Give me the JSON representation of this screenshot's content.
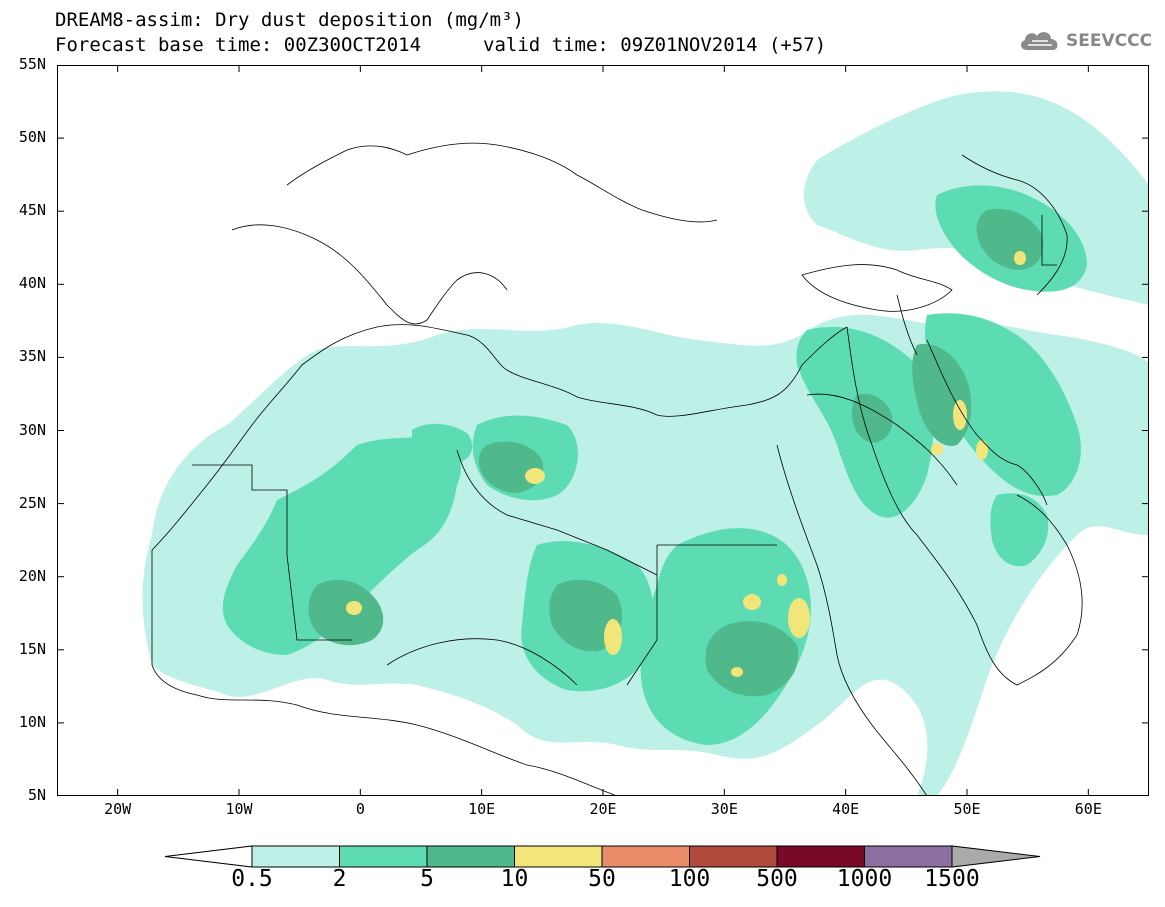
{
  "header": {
    "title_line1": "DREAM8-assim: Dry dust deposition (mg/m³)",
    "title_line2": "Forecast base time: 00Z30OCT2014",
    "valid_time": "valid time: 09Z01NOV2014 (+57)"
  },
  "logo": {
    "text": "SEEVCCC",
    "icon": "cloud-icon",
    "color": "#8a8a8a"
  },
  "map": {
    "extent": {
      "lon_min": -25,
      "lon_max": 65,
      "lat_min": 5,
      "lat_max": 55
    },
    "lat_labels": [
      "55N",
      "50N",
      "45N",
      "40N",
      "35N",
      "30N",
      "25N",
      "20N",
      "15N",
      "10N",
      "5N"
    ],
    "lon_labels": [
      "20W",
      "10W",
      "0",
      "10E",
      "20E",
      "30E",
      "40E",
      "50E",
      "60E"
    ],
    "background": "#ffffff",
    "coastline_color": "#000000"
  },
  "colorbar": {
    "labels": [
      "0.5",
      "2",
      "5",
      "10",
      "50",
      "100",
      "500",
      "1000",
      "1500"
    ],
    "colors": [
      "#bdf0e6",
      "#5ddcb4",
      "#4fb98c",
      "#f2e67a",
      "#e88c6a",
      "#b04a3c",
      "#780a28",
      "#8c6ea0",
      "#aaaaaa"
    ]
  }
}
